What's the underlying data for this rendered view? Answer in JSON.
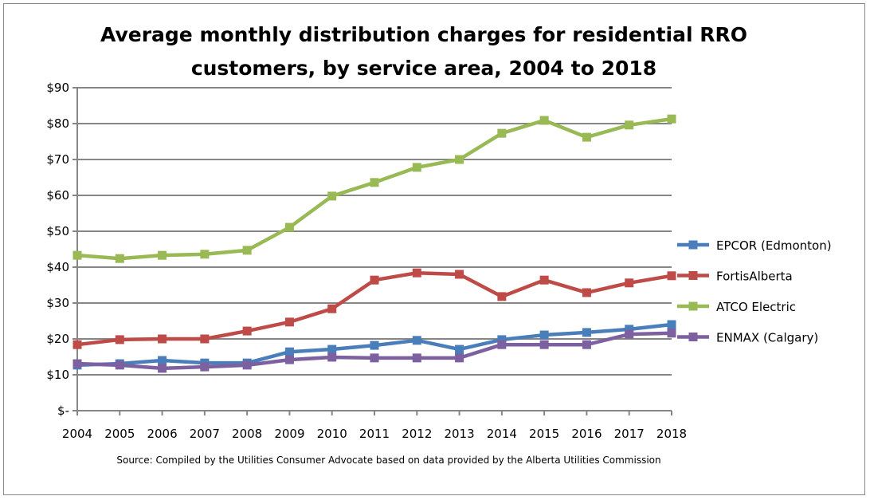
{
  "chart_data": {
    "type": "line",
    "title_lines": [
      "Average monthly distribution charges for residential RRO",
      "customers, by service area, 2004 to 2018"
    ],
    "xlabel": "",
    "ylabel": "",
    "x": [
      "2004",
      "2005",
      "2006",
      "2007",
      "2008",
      "2009",
      "2010",
      "2011",
      "2012",
      "2013",
      "2014",
      "2015",
      "2016",
      "2017",
      "2018"
    ],
    "ylim": [
      0,
      90
    ],
    "y_ticks": [
      "$-",
      "$10",
      "$20",
      "$30",
      "$40",
      "$50",
      "$60",
      "$70",
      "$80",
      "$90"
    ],
    "grid": true,
    "legend_position": "right",
    "series": [
      {
        "name": "EPCOR (Edmonton)",
        "color": "#4a7ebb",
        "values": [
          12.7,
          13.1,
          14.0,
          13.3,
          13.3,
          16.4,
          17.1,
          18.2,
          19.6,
          17.1,
          19.8,
          21.1,
          21.8,
          22.7,
          24.0
        ]
      },
      {
        "name": "FortisAlberta",
        "color": "#be4b48",
        "values": [
          18.4,
          19.8,
          20.0,
          20.0,
          22.2,
          24.7,
          28.4,
          36.4,
          38.4,
          38.0,
          31.8,
          36.4,
          32.9,
          35.6,
          37.6
        ]
      },
      {
        "name": "ATCO Electric",
        "color": "#98b954",
        "values": [
          43.3,
          42.4,
          43.3,
          43.6,
          44.7,
          51.1,
          59.8,
          63.6,
          67.8,
          70.0,
          77.3,
          80.9,
          76.2,
          79.6,
          81.3
        ]
      },
      {
        "name": "ENMAX (Calgary)",
        "color": "#7d60a0",
        "values": [
          13.1,
          12.7,
          11.8,
          12.2,
          12.7,
          14.2,
          14.9,
          14.7,
          14.7,
          14.7,
          18.4,
          18.4,
          18.4,
          21.3,
          21.6
        ]
      }
    ],
    "source_note": "Source: Compiled by the Utilities Consumer Advocate based on data provided by the Alberta Utilities Commission"
  }
}
